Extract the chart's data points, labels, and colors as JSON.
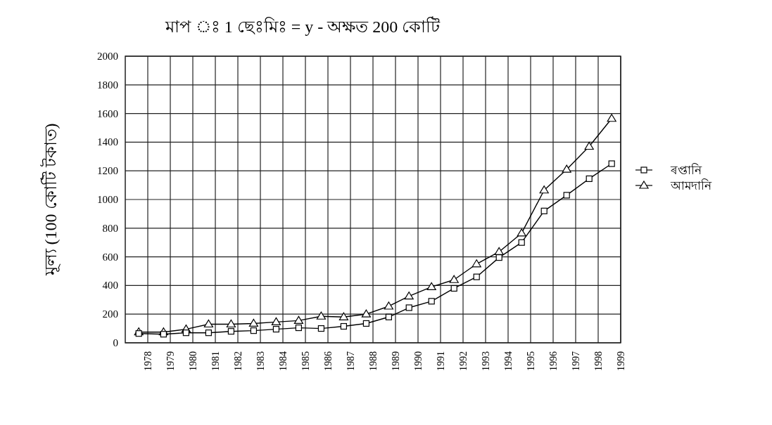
{
  "chart_data": {
    "type": "line",
    "title": "মাপ ঃ 1 ছেঃমিঃ = y - অক্ষত 200 কোটি",
    "ylabel": "মূল্য (100 কোটি টকাত)",
    "x": [
      1977.6,
      1978.7,
      1979.7,
      1980.7,
      1981.7,
      1982.7,
      1983.7,
      1984.7,
      1985.7,
      1986.7,
      1987.7,
      1988.7,
      1989.6,
      1990.6,
      1991.6,
      1992.6,
      1993.6,
      1994.6,
      1995.6,
      1996.6,
      1997.6,
      1998.6
    ],
    "xlim": [
      1977,
      1999
    ],
    "xticks": [
      1978,
      1979,
      1980,
      1981,
      1982,
      1983,
      1984,
      1985,
      1986,
      1987,
      1988,
      1989,
      1990,
      1991,
      1992,
      1993,
      1994,
      1995,
      1996,
      1997,
      1998,
      1999
    ],
    "ylim": [
      0,
      2000
    ],
    "yticks": [
      0,
      200,
      400,
      600,
      800,
      1000,
      1200,
      1400,
      1600,
      1800,
      2000
    ],
    "series": [
      {
        "name": "ৰপ্তানি",
        "color": "#000000",
        "marker": "square",
        "values": [
          65,
          60,
          70,
          70,
          80,
          85,
          95,
          105,
          100,
          115,
          135,
          180,
          245,
          290,
          380,
          460,
          595,
          700,
          920,
          1030,
          1145,
          1250
        ]
      },
      {
        "name": "আমদানি",
        "color": "#000000",
        "marker": "triangle",
        "values": [
          75,
          75,
          95,
          130,
          130,
          135,
          145,
          155,
          185,
          180,
          200,
          255,
          325,
          390,
          440,
          550,
          635,
          765,
          1065,
          1210,
          1370,
          1565
        ]
      }
    ],
    "grid": true,
    "legend": "right",
    "line_style": "solid"
  }
}
